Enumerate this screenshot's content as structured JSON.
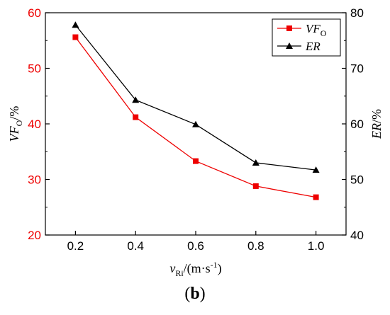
{
  "caption": {
    "open": "(",
    "letter": "b",
    "close": ")"
  },
  "chart_data": {
    "type": "line",
    "x": [
      0.2,
      0.4,
      0.6,
      0.8,
      1.0
    ],
    "xlim": [
      0.1,
      1.1
    ],
    "xticks": [
      "0.2",
      "0.4",
      "0.6",
      "0.8",
      "1.0"
    ],
    "xlabel": {
      "v": "v",
      "sub": "Ri",
      "rest": "/(m·s",
      "sup": "-1",
      "close": ")"
    },
    "y_left": {
      "label": {
        "main": "VF",
        "sub": "O",
        "rest": "/%"
      },
      "lim": [
        20,
        60
      ],
      "ticks": [
        "20",
        "30",
        "40",
        "50",
        "60"
      ],
      "color": "#ee0000"
    },
    "y_right": {
      "label": {
        "main": "ER",
        "rest": "/%"
      },
      "lim": [
        40,
        80
      ],
      "ticks": [
        "40",
        "50",
        "60",
        "70",
        "80"
      ],
      "color": "#000000"
    },
    "series": [
      {
        "name": "VF",
        "name_sub": "O",
        "axis": "left",
        "marker": "square",
        "color": "#ee0000",
        "values": [
          55.6,
          41.2,
          33.3,
          28.8,
          26.8
        ]
      },
      {
        "name": "ER",
        "name_sub": "",
        "axis": "right",
        "marker": "triangle",
        "color": "#000000",
        "values": [
          77.8,
          64.3,
          59.9,
          53.0,
          51.7
        ]
      }
    ],
    "legend": "top-right",
    "grid": false
  }
}
